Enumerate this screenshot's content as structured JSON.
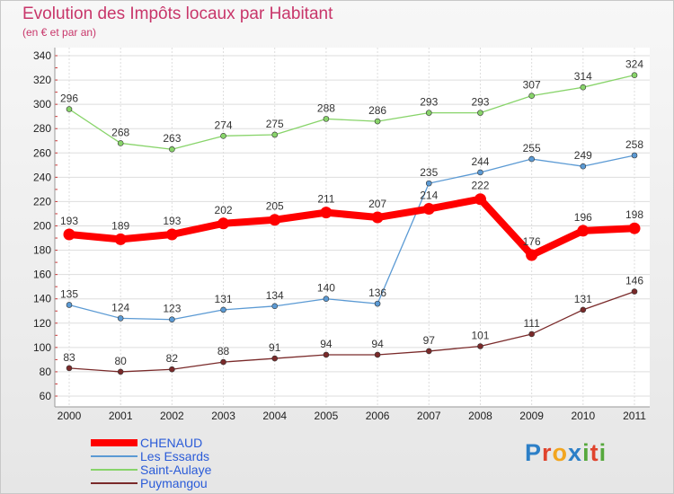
{
  "header": {
    "title": "Evolution des Impôts locaux par Habitant",
    "subtitle": "(en € et par an)"
  },
  "logo": {
    "text": "Proxiti",
    "colors": [
      "#2c7fc7",
      "#e0432d",
      "#f2a51f",
      "#2c7fc7",
      "#56a83c",
      "#e0432d",
      "#56a83c"
    ]
  },
  "chart_data": {
    "type": "line",
    "title": "Evolution des Impôts locaux par Habitant",
    "subtitle": "(en € et par an)",
    "x": [
      "2000",
      "2001",
      "2002",
      "2003",
      "2004",
      "2005",
      "2006",
      "2007",
      "2008",
      "2009",
      "2010",
      "2011"
    ],
    "ylim": [
      60,
      340
    ],
    "yticks": [
      60,
      80,
      100,
      120,
      140,
      160,
      180,
      200,
      220,
      240,
      260,
      280,
      300,
      320,
      340
    ],
    "grid": "horizontal",
    "legend_position": "bottom-left",
    "series": [
      {
        "name": "Saint-Aulaye",
        "color": "#88d46a",
        "values": [
          296,
          268,
          263,
          274,
          275,
          288,
          286,
          293,
          293,
          307,
          314,
          324
        ]
      },
      {
        "name": "Les Essards",
        "color": "#5b9ad4",
        "values": [
          135,
          124,
          123,
          131,
          134,
          140,
          136,
          235,
          244,
          255,
          249,
          258
        ]
      },
      {
        "name": "Puymangou",
        "color": "#7a2a2a",
        "values": [
          83,
          80,
          82,
          88,
          91,
          94,
          94,
          97,
          101,
          111,
          131,
          146
        ]
      },
      {
        "name": "CHENAUD",
        "color": "#ff0000",
        "values": [
          193,
          189,
          193,
          202,
          205,
          211,
          207,
          214,
          222,
          176,
          196,
          198
        ]
      }
    ],
    "legend_order": [
      "CHENAUD",
      "Les Essards",
      "Saint-Aulaye",
      "Puymangou"
    ]
  }
}
